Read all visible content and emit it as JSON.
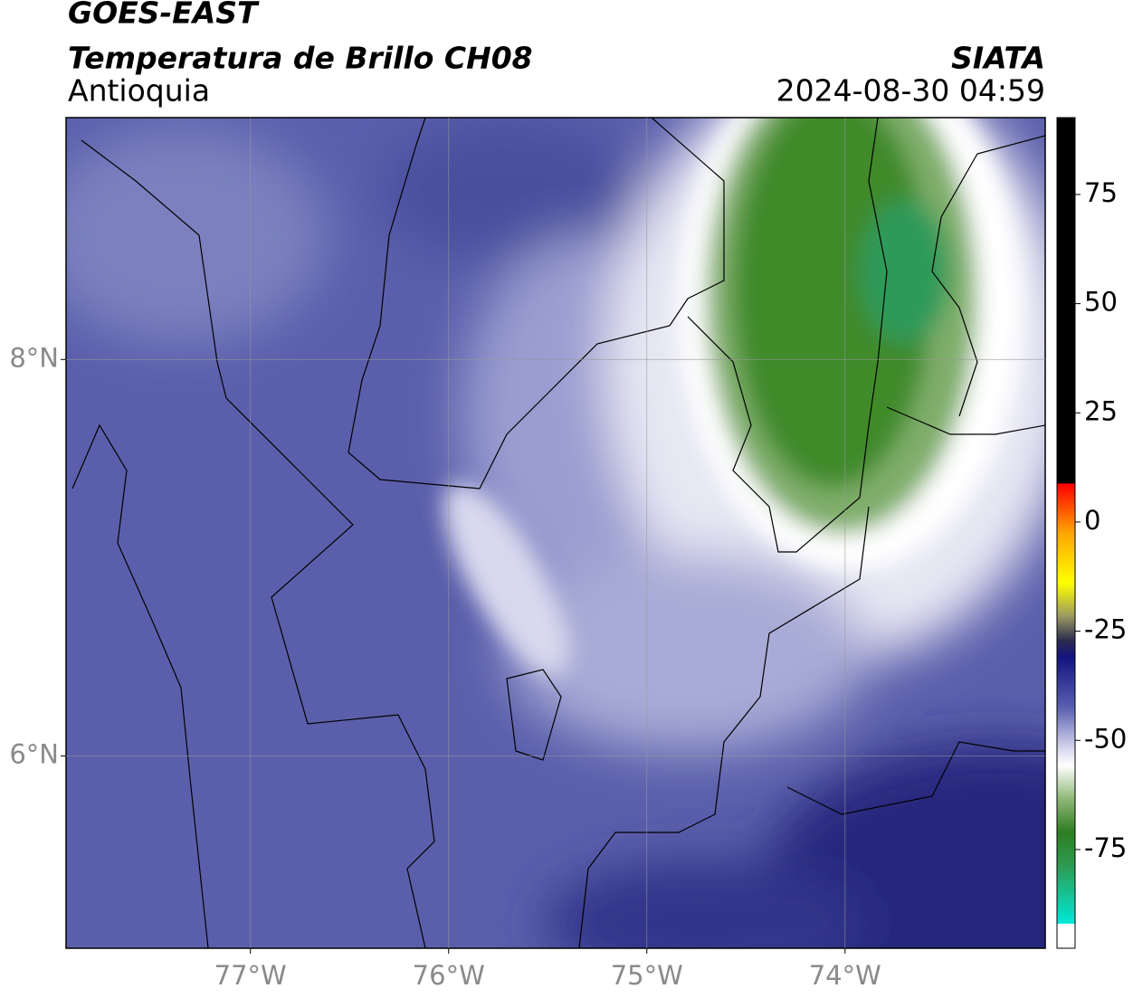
{
  "header": {
    "title": "GOES-EAST",
    "subtitle": "Temperatura de Brillo CH08",
    "region": "Antioquia",
    "source": "SIATA",
    "timestamp": "2024-08-30 04:59"
  },
  "map": {
    "lonlim": [
      -77.93,
      -72.99
    ],
    "latlim": [
      5.03,
      9.22
    ],
    "lon_ticks": [
      {
        "value": -77,
        "label": "77°W"
      },
      {
        "value": -76,
        "label": "76°W"
      },
      {
        "value": -75,
        "label": "75°W"
      },
      {
        "value": -74,
        "label": "74°W"
      }
    ],
    "lat_ticks": [
      {
        "value": 8,
        "label": "8°N"
      },
      {
        "value": 6,
        "label": "6°N"
      }
    ],
    "grid": true
  },
  "colorbar": {
    "lim": [
      -97.6,
      92.6
    ],
    "ticks": [
      75,
      50,
      25,
      0,
      -25,
      -50,
      -75
    ]
  }
}
